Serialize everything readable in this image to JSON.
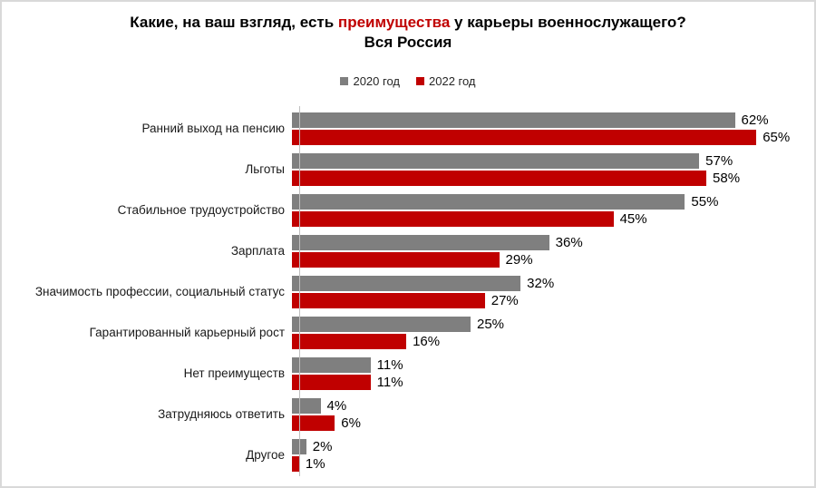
{
  "title": {
    "prefix": "Какие, на ваш взгляд, есть ",
    "highlight": "преимущества",
    "suffix": " у карьеры военнослужащего?",
    "subtitle": "Вся Россия"
  },
  "colors": {
    "series_2020": "#7f7f7f",
    "series_2022": "#c00000",
    "title_highlight": "#c00000",
    "frame_border": "#d9d9d9",
    "axis_line": "#bfbfbf"
  },
  "legend": [
    {
      "label": "2020 год",
      "color": "#7f7f7f"
    },
    {
      "label": "2022 год",
      "color": "#c00000"
    }
  ],
  "chart_data": {
    "type": "bar",
    "orientation": "horizontal",
    "title": "Какие, на ваш взгляд, есть преимущества у карьеры военнослужащего?",
    "subtitle": "Вся Россия",
    "legend_position": "top",
    "grid": false,
    "xlim": [
      0,
      70
    ],
    "value_suffix": "%",
    "categories": [
      "Ранний выход на пенсию",
      "Льготы",
      "Стабильное трудоустройство",
      "Зарплата",
      "Значимость профессии, социальный статус",
      "Гарантированный карьерный рост",
      "Нет преимуществ",
      "Затрудняюсь ответить",
      "Другое"
    ],
    "series": [
      {
        "name": "2020 год",
        "color": "#7f7f7f",
        "values": [
          62,
          57,
          55,
          36,
          32,
          25,
          11,
          4,
          2
        ]
      },
      {
        "name": "2022 год",
        "color": "#c00000",
        "values": [
          65,
          58,
          45,
          29,
          27,
          16,
          11,
          6,
          1
        ]
      }
    ]
  }
}
